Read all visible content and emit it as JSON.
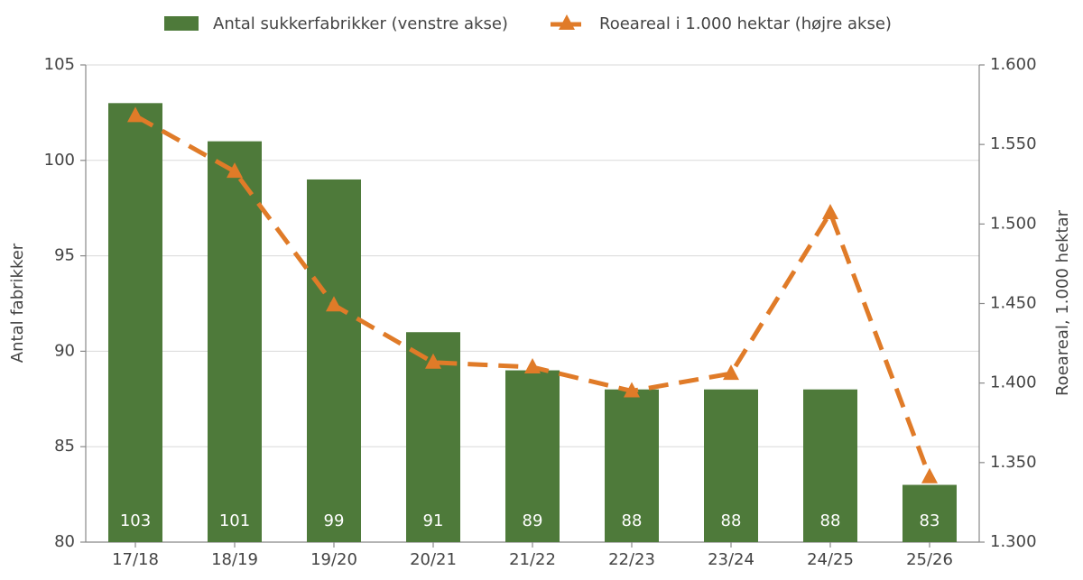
{
  "chart_data": {
    "type": "bar",
    "categories": [
      "17/18",
      "18/19",
      "19/20",
      "20/21",
      "21/22",
      "22/23",
      "23/24",
      "24/25",
      "25/26"
    ],
    "series": [
      {
        "name": "Antal sukkerfabrikker (venstre akse)",
        "color": "#4e7a3a",
        "type": "bar",
        "values": [
          103,
          101,
          99,
          91,
          89,
          88,
          88,
          88,
          83
        ]
      },
      {
        "name": "Roeareal i 1.000 hektar (højre akse)",
        "color": "#e07b28",
        "type": "line",
        "axis": "y2",
        "values": [
          1568,
          1533,
          1449,
          1413,
          1410,
          1395,
          1406,
          1507,
          1341
        ]
      }
    ],
    "ylabel": "Antal fabrikker",
    "y2label": "Roeareal, 1.000 hektar",
    "ylim": [
      80,
      105
    ],
    "yticks": [
      80,
      85,
      90,
      95,
      100,
      105
    ],
    "y2lim": [
      1300,
      1600
    ],
    "y2ticks": [
      {
        "value": 1300,
        "label": "1.300"
      },
      {
        "value": 1350,
        "label": "1.350"
      },
      {
        "value": 1400,
        "label": "1.400"
      },
      {
        "value": 1450,
        "label": "1.450"
      },
      {
        "value": 1500,
        "label": "1.500"
      },
      {
        "value": 1550,
        "label": "1.550"
      },
      {
        "value": 1600,
        "label": "1.600"
      }
    ],
    "grid": true
  }
}
